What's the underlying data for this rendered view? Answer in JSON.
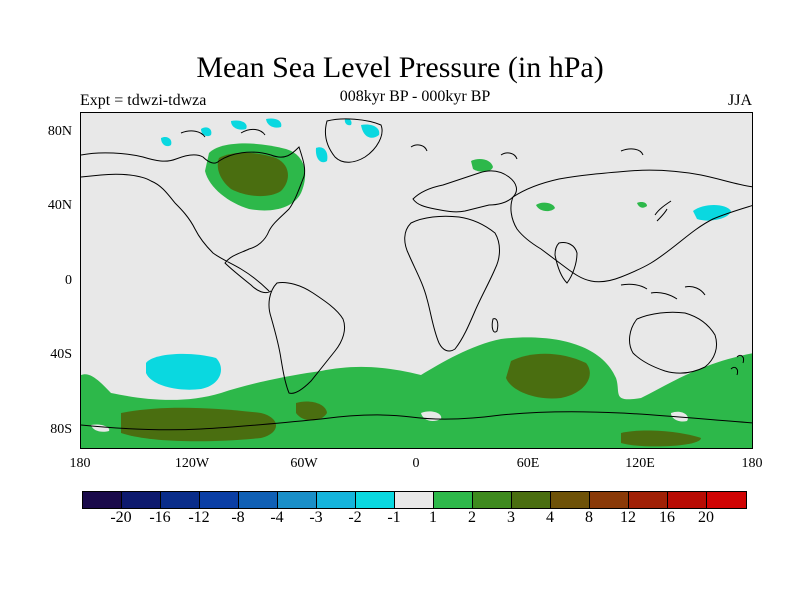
{
  "title": "Mean Sea Level Pressure (in hPa)",
  "expt_label": "Expt = tdwzi-tdwza",
  "subtitle": "008kyr BP - 000kyr BP",
  "season": "JJA",
  "lat_ticks": [
    "80N",
    "40N",
    "0",
    "40S",
    "80S"
  ],
  "lon_ticks": [
    "180",
    "120W",
    "60W",
    "0",
    "60E",
    "120E",
    "180"
  ],
  "colorbar": {
    "colors": [
      "#1a0a4a",
      "#0d1a6e",
      "#0a2d8a",
      "#0a3ea5",
      "#1060b5",
      "#1a8fc8",
      "#15b4dc",
      "#0ad8e0",
      "#e8e8e8",
      "#2db84a",
      "#3e8a1e",
      "#4a6e10",
      "#6e5208",
      "#8a3a08",
      "#a02006",
      "#b80c04",
      "#d00404"
    ],
    "labels": [
      "-20",
      "-16",
      "-12",
      "-8",
      "-4",
      "-3",
      "-2",
      "-1",
      "1",
      "2",
      "3",
      "4",
      "8",
      "12",
      "16",
      "20"
    ]
  },
  "map_colors": {
    "background": "#e8e8e8",
    "cyan": "#0ad8e0",
    "green": "#2db84a",
    "olive": "#4a6e10",
    "coast": "#000000"
  }
}
